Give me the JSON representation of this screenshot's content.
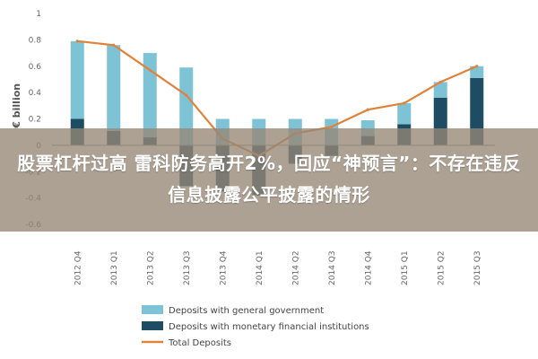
{
  "chart_data": {
    "type": "bar",
    "ylabel": "€ billion",
    "ylim": [
      -0.6,
      1.0
    ],
    "yticks": [
      "1",
      "0.8",
      "0.6",
      "0.4",
      "0.2",
      "0",
      "-0.2",
      "-0.4",
      "-0.6"
    ],
    "categories": [
      "2012 Q4",
      "2013 Q1",
      "2013 Q2",
      "2013 Q3",
      "2013 Q4",
      "2014 Q1",
      "2014 Q2",
      "2014 Q3",
      "2014 Q4",
      "2015 Q1",
      "2015 Q2",
      "2015 Q3"
    ],
    "series": [
      {
        "name": "Deposits with general government",
        "kind": "bar",
        "color": "#7ec2d6",
        "values": [
          0.59,
          0.65,
          0.64,
          0.59,
          0.2,
          0.2,
          0.2,
          0.2,
          0.12,
          0.16,
          0.12,
          0.09
        ]
      },
      {
        "name": "Deposits with monetary financial institutions",
        "kind": "bar",
        "color": "#1e4d63",
        "values": [
          0.2,
          0.11,
          0.06,
          -0.31,
          -0.35,
          -0.38,
          -0.14,
          -0.08,
          0.07,
          0.16,
          0.36,
          0.51
        ]
      },
      {
        "name": "Total Deposits",
        "kind": "line",
        "color": "#e0823a",
        "values": [
          0.79,
          0.76,
          0.57,
          0.38,
          0.05,
          -0.08,
          0.09,
          0.14,
          0.27,
          0.32,
          0.48,
          0.6
        ]
      }
    ],
    "legend_position": "bottom"
  },
  "overlay": {
    "title": "股票杠杆过高 雷科防务高开2%，回应“神预言”：不存在违反信息披露公平披露的情形"
  },
  "colors": {
    "axis": "#888888",
    "tick_text": "#666666",
    "overlay_bg": "#968776"
  }
}
